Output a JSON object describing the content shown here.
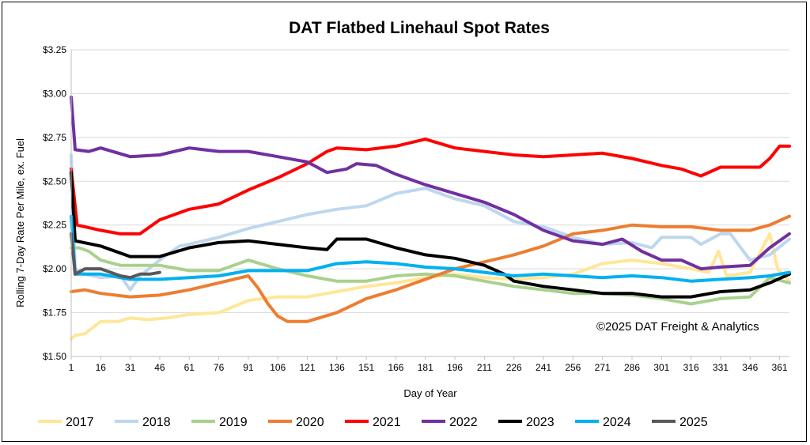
{
  "chart_data": {
    "type": "line",
    "title": "DAT Flatbed Linehaul Spot Rates",
    "xlabel": "Day of Year",
    "ylabel": "Rolling 7-Day Rate Per Mile, ex. Fuel",
    "xlim": [
      1,
      366
    ],
    "ylim": [
      1.5,
      3.25
    ],
    "x_ticks": [
      1,
      16,
      31,
      46,
      61,
      76,
      91,
      106,
      121,
      136,
      151,
      166,
      181,
      196,
      211,
      226,
      241,
      256,
      271,
      286,
      301,
      316,
      331,
      346,
      361
    ],
    "y_ticks": [
      1.5,
      1.75,
      2.0,
      2.25,
      2.5,
      2.75,
      3.0,
      3.25
    ],
    "y_tick_labels": [
      "$1.50",
      "$1.75",
      "$2.00",
      "$2.25",
      "$2.50",
      "$2.75",
      "$3.00",
      "$3.25"
    ],
    "grid": "horizontal",
    "legend": "bottom",
    "annotation": "©2025 DAT Freight & Analytics",
    "series": [
      {
        "name": "2017",
        "color": "#FFE699",
        "points": [
          [
            1,
            1.6
          ],
          [
            3,
            1.62
          ],
          [
            8,
            1.63
          ],
          [
            16,
            1.7
          ],
          [
            25,
            1.7
          ],
          [
            31,
            1.72
          ],
          [
            40,
            1.71
          ],
          [
            50,
            1.72
          ],
          [
            61,
            1.74
          ],
          [
            76,
            1.75
          ],
          [
            91,
            1.82
          ],
          [
            106,
            1.84
          ],
          [
            121,
            1.84
          ],
          [
            136,
            1.87
          ],
          [
            151,
            1.9
          ],
          [
            166,
            1.92
          ],
          [
            181,
            1.95
          ],
          [
            196,
            1.97
          ],
          [
            211,
            1.95
          ],
          [
            226,
            1.94
          ],
          [
            241,
            1.95
          ],
          [
            256,
            1.97
          ],
          [
            271,
            2.03
          ],
          [
            286,
            2.05
          ],
          [
            301,
            2.03
          ],
          [
            316,
            2.0
          ],
          [
            325,
            1.98
          ],
          [
            330,
            2.1
          ],
          [
            334,
            1.96
          ],
          [
            346,
            1.98
          ],
          [
            356,
            2.2
          ],
          [
            360,
            2.0
          ],
          [
            366,
            1.93
          ]
        ]
      },
      {
        "name": "2018",
        "color": "#BDD7EE",
        "points": [
          [
            1,
            2.65
          ],
          [
            3,
            2.0
          ],
          [
            8,
            1.97
          ],
          [
            16,
            1.95
          ],
          [
            26,
            1.96
          ],
          [
            31,
            1.88
          ],
          [
            36,
            1.96
          ],
          [
            46,
            2.05
          ],
          [
            56,
            2.13
          ],
          [
            61,
            2.14
          ],
          [
            76,
            2.18
          ],
          [
            91,
            2.23
          ],
          [
            106,
            2.27
          ],
          [
            121,
            2.31
          ],
          [
            136,
            2.34
          ],
          [
            151,
            2.36
          ],
          [
            166,
            2.43
          ],
          [
            181,
            2.46
          ],
          [
            196,
            2.4
          ],
          [
            211,
            2.36
          ],
          [
            226,
            2.27
          ],
          [
            241,
            2.24
          ],
          [
            256,
            2.18
          ],
          [
            271,
            2.14
          ],
          [
            286,
            2.15
          ],
          [
            296,
            2.12
          ],
          [
            301,
            2.18
          ],
          [
            316,
            2.18
          ],
          [
            321,
            2.14
          ],
          [
            331,
            2.2
          ],
          [
            336,
            2.2
          ],
          [
            346,
            2.05
          ],
          [
            356,
            2.08
          ],
          [
            366,
            2.17
          ]
        ]
      },
      {
        "name": "2019",
        "color": "#A9D18E",
        "points": [
          [
            1,
            2.12
          ],
          [
            5,
            2.12
          ],
          [
            10,
            2.1
          ],
          [
            16,
            2.05
          ],
          [
            26,
            2.02
          ],
          [
            31,
            2.02
          ],
          [
            46,
            2.02
          ],
          [
            61,
            1.99
          ],
          [
            76,
            1.99
          ],
          [
            91,
            2.05
          ],
          [
            106,
            2.0
          ],
          [
            121,
            1.96
          ],
          [
            136,
            1.93
          ],
          [
            151,
            1.93
          ],
          [
            166,
            1.96
          ],
          [
            181,
            1.97
          ],
          [
            196,
            1.96
          ],
          [
            211,
            1.93
          ],
          [
            226,
            1.9
          ],
          [
            241,
            1.88
          ],
          [
            256,
            1.86
          ],
          [
            271,
            1.86
          ],
          [
            286,
            1.85
          ],
          [
            301,
            1.83
          ],
          [
            316,
            1.8
          ],
          [
            331,
            1.83
          ],
          [
            346,
            1.84
          ],
          [
            356,
            1.95
          ],
          [
            366,
            1.92
          ]
        ]
      },
      {
        "name": "2020",
        "color": "#ED7D31",
        "points": [
          [
            1,
            1.87
          ],
          [
            8,
            1.88
          ],
          [
            16,
            1.86
          ],
          [
            31,
            1.84
          ],
          [
            46,
            1.85
          ],
          [
            61,
            1.88
          ],
          [
            76,
            1.92
          ],
          [
            91,
            1.96
          ],
          [
            96,
            1.89
          ],
          [
            101,
            1.8
          ],
          [
            106,
            1.73
          ],
          [
            111,
            1.7
          ],
          [
            121,
            1.7
          ],
          [
            136,
            1.75
          ],
          [
            151,
            1.83
          ],
          [
            166,
            1.88
          ],
          [
            181,
            1.94
          ],
          [
            196,
            2.0
          ],
          [
            211,
            2.04
          ],
          [
            226,
            2.08
          ],
          [
            241,
            2.13
          ],
          [
            256,
            2.2
          ],
          [
            271,
            2.22
          ],
          [
            286,
            2.25
          ],
          [
            301,
            2.24
          ],
          [
            316,
            2.24
          ],
          [
            331,
            2.22
          ],
          [
            346,
            2.22
          ],
          [
            356,
            2.25
          ],
          [
            366,
            2.3
          ]
        ]
      },
      {
        "name": "2021",
        "color": "#FF0000",
        "points": [
          [
            1,
            2.57
          ],
          [
            4,
            2.25
          ],
          [
            16,
            2.22
          ],
          [
            26,
            2.2
          ],
          [
            36,
            2.2
          ],
          [
            46,
            2.28
          ],
          [
            61,
            2.34
          ],
          [
            76,
            2.37
          ],
          [
            91,
            2.45
          ],
          [
            106,
            2.52
          ],
          [
            121,
            2.6
          ],
          [
            131,
            2.67
          ],
          [
            136,
            2.69
          ],
          [
            151,
            2.68
          ],
          [
            166,
            2.7
          ],
          [
            181,
            2.74
          ],
          [
            196,
            2.69
          ],
          [
            211,
            2.67
          ],
          [
            226,
            2.65
          ],
          [
            241,
            2.64
          ],
          [
            256,
            2.65
          ],
          [
            271,
            2.66
          ],
          [
            286,
            2.63
          ],
          [
            301,
            2.59
          ],
          [
            311,
            2.57
          ],
          [
            321,
            2.53
          ],
          [
            331,
            2.58
          ],
          [
            341,
            2.58
          ],
          [
            351,
            2.58
          ],
          [
            356,
            2.63
          ],
          [
            361,
            2.7
          ],
          [
            366,
            2.7
          ]
        ]
      },
      {
        "name": "2022",
        "color": "#7030A0",
        "points": [
          [
            1,
            2.98
          ],
          [
            3,
            2.68
          ],
          [
            10,
            2.67
          ],
          [
            16,
            2.69
          ],
          [
            31,
            2.64
          ],
          [
            46,
            2.65
          ],
          [
            61,
            2.69
          ],
          [
            76,
            2.67
          ],
          [
            91,
            2.67
          ],
          [
            106,
            2.64
          ],
          [
            121,
            2.61
          ],
          [
            131,
            2.55
          ],
          [
            141,
            2.57
          ],
          [
            146,
            2.6
          ],
          [
            156,
            2.59
          ],
          [
            166,
            2.54
          ],
          [
            181,
            2.48
          ],
          [
            196,
            2.43
          ],
          [
            211,
            2.38
          ],
          [
            226,
            2.31
          ],
          [
            241,
            2.22
          ],
          [
            256,
            2.16
          ],
          [
            271,
            2.14
          ],
          [
            281,
            2.17
          ],
          [
            291,
            2.1
          ],
          [
            301,
            2.05
          ],
          [
            311,
            2.05
          ],
          [
            321,
            2.0
          ],
          [
            331,
            2.01
          ],
          [
            346,
            2.02
          ],
          [
            356,
            2.12
          ],
          [
            366,
            2.2
          ]
        ]
      },
      {
        "name": "2023",
        "color": "#000000",
        "points": [
          [
            1,
            2.55
          ],
          [
            3,
            2.16
          ],
          [
            16,
            2.13
          ],
          [
            31,
            2.07
          ],
          [
            46,
            2.07
          ],
          [
            61,
            2.12
          ],
          [
            76,
            2.15
          ],
          [
            91,
            2.16
          ],
          [
            106,
            2.14
          ],
          [
            121,
            2.12
          ],
          [
            131,
            2.11
          ],
          [
            136,
            2.17
          ],
          [
            151,
            2.17
          ],
          [
            166,
            2.12
          ],
          [
            181,
            2.08
          ],
          [
            196,
            2.06
          ],
          [
            211,
            2.02
          ],
          [
            221,
            1.97
          ],
          [
            226,
            1.93
          ],
          [
            241,
            1.9
          ],
          [
            256,
            1.88
          ],
          [
            271,
            1.86
          ],
          [
            286,
            1.86
          ],
          [
            301,
            1.84
          ],
          [
            316,
            1.84
          ],
          [
            331,
            1.87
          ],
          [
            346,
            1.88
          ],
          [
            356,
            1.92
          ],
          [
            366,
            1.97
          ]
        ]
      },
      {
        "name": "2024",
        "color": "#00B0F0",
        "points": [
          [
            1,
            2.3
          ],
          [
            3,
            1.97
          ],
          [
            16,
            1.97
          ],
          [
            31,
            1.94
          ],
          [
            46,
            1.94
          ],
          [
            61,
            1.95
          ],
          [
            76,
            1.96
          ],
          [
            91,
            1.99
          ],
          [
            106,
            1.99
          ],
          [
            121,
            1.99
          ],
          [
            136,
            2.03
          ],
          [
            151,
            2.04
          ],
          [
            166,
            2.03
          ],
          [
            181,
            2.01
          ],
          [
            196,
            2.0
          ],
          [
            211,
            1.98
          ],
          [
            226,
            1.96
          ],
          [
            241,
            1.97
          ],
          [
            256,
            1.96
          ],
          [
            271,
            1.95
          ],
          [
            286,
            1.96
          ],
          [
            301,
            1.95
          ],
          [
            316,
            1.93
          ],
          [
            331,
            1.94
          ],
          [
            346,
            1.95
          ],
          [
            356,
            1.96
          ],
          [
            366,
            1.98
          ]
        ]
      },
      {
        "name": "2025",
        "color": "#595959",
        "points": [
          [
            1,
            2.2
          ],
          [
            3,
            1.97
          ],
          [
            8,
            2.0
          ],
          [
            16,
            2.0
          ],
          [
            26,
            1.96
          ],
          [
            31,
            1.95
          ],
          [
            36,
            1.97
          ],
          [
            41,
            1.97
          ],
          [
            46,
            1.98
          ]
        ]
      }
    ]
  }
}
